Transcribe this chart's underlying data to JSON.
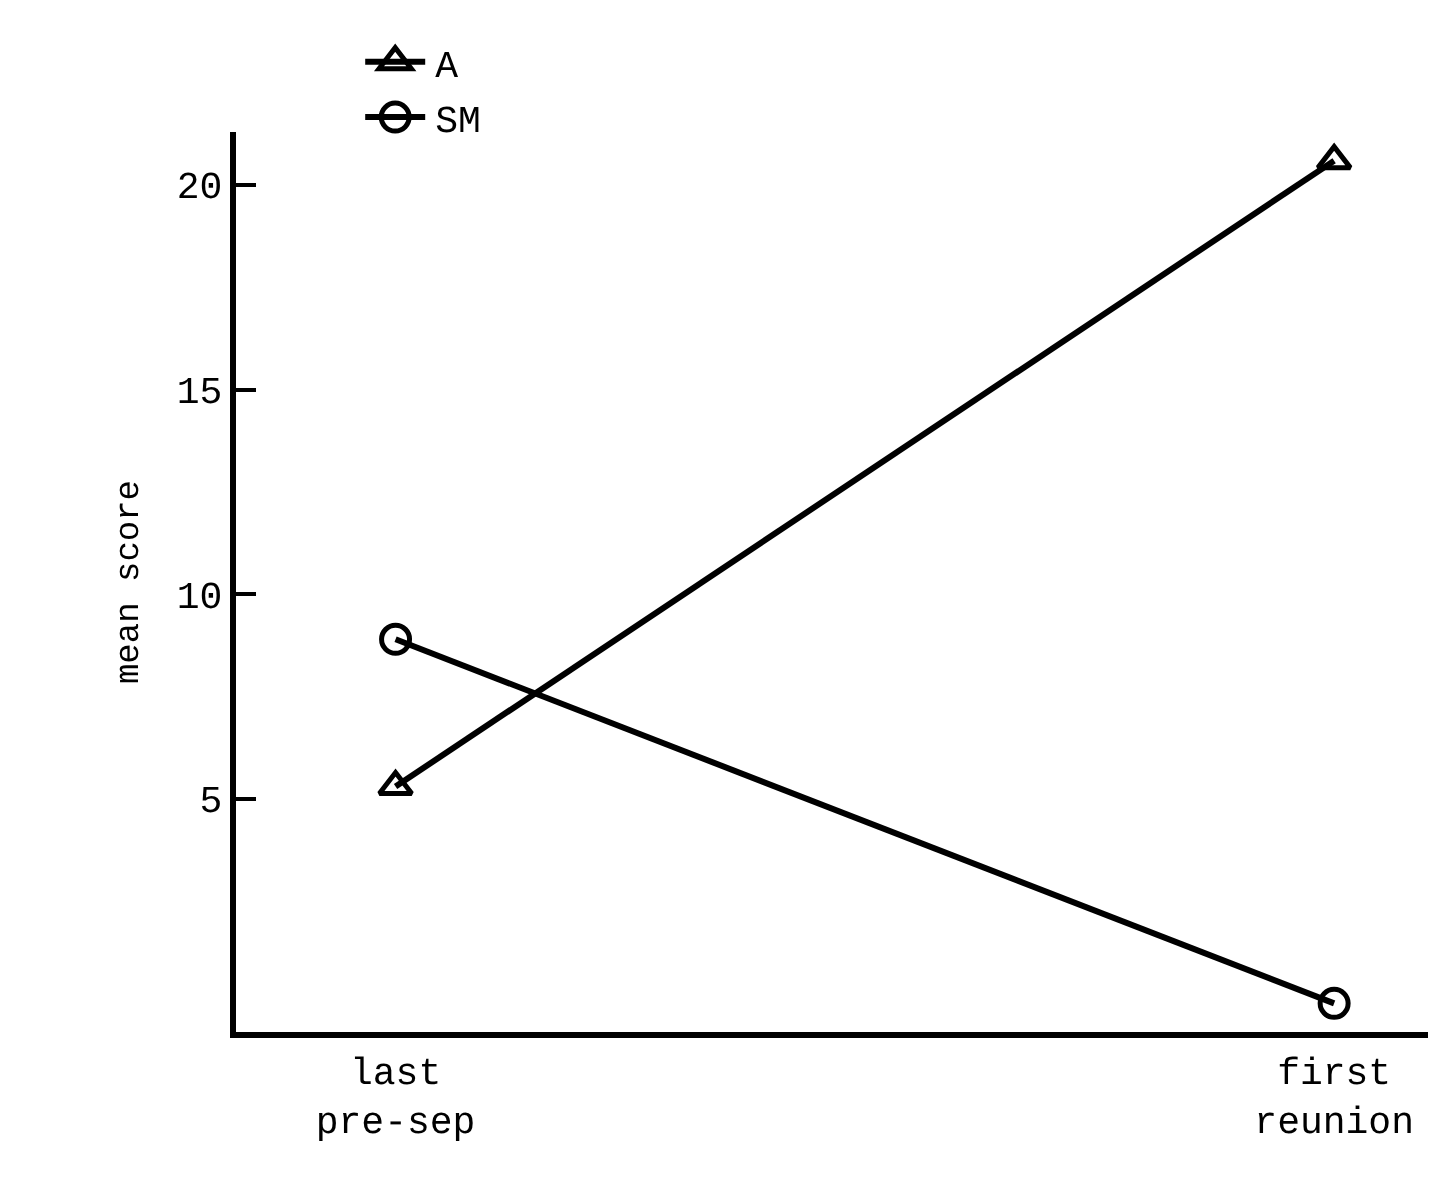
{
  "chart_data": {
    "type": "line",
    "ylabel": "mean score",
    "categories": [
      "last\npre-sep",
      "first\nreunion"
    ],
    "series": [
      {
        "name": "A",
        "color": "#000000",
        "marker": "triangle",
        "values": [
          5.3,
          20.6
        ]
      },
      {
        "name": "SM",
        "color": "#000000",
        "marker": "circle",
        "values": [
          8.9,
          0
        ]
      }
    ],
    "ylim": [
      -0.7,
      21.3
    ],
    "yticks": [
      5,
      10,
      15,
      20
    ],
    "legend": "top left",
    "line_style": "solid"
  }
}
